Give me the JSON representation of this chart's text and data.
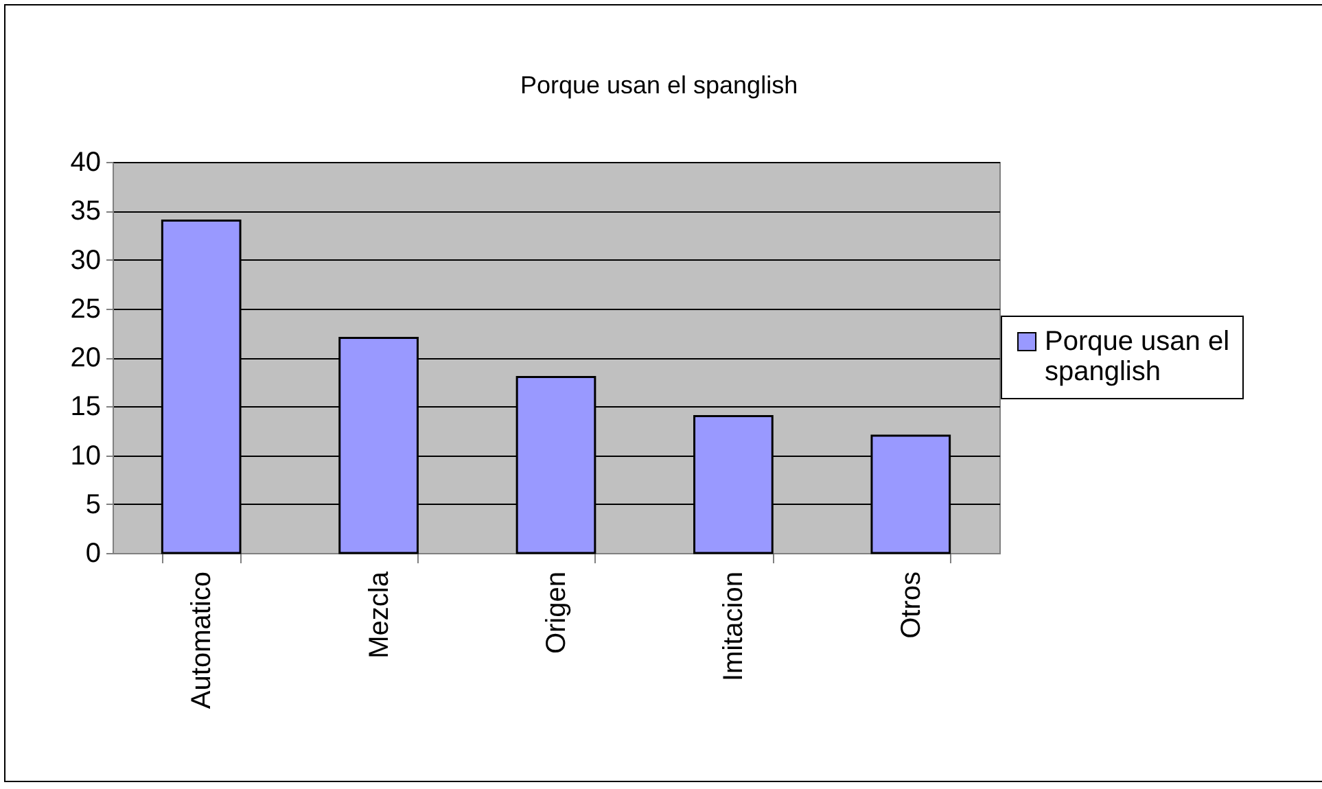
{
  "chart_data": {
    "type": "bar",
    "title": "Porque usan el spanglish",
    "categories": [
      "Automatico",
      "Mezcla",
      "Origen",
      "Imitacion",
      "Otros"
    ],
    "series": [
      {
        "name": "Porque usan el spanglish",
        "color": "#9999ff",
        "values": [
          34,
          22,
          18,
          14,
          12
        ]
      }
    ],
    "ylim": [
      0,
      40
    ],
    "yticks": [
      0,
      5,
      10,
      15,
      20,
      25,
      30,
      35,
      40
    ],
    "grid": "y",
    "legend": "right"
  }
}
